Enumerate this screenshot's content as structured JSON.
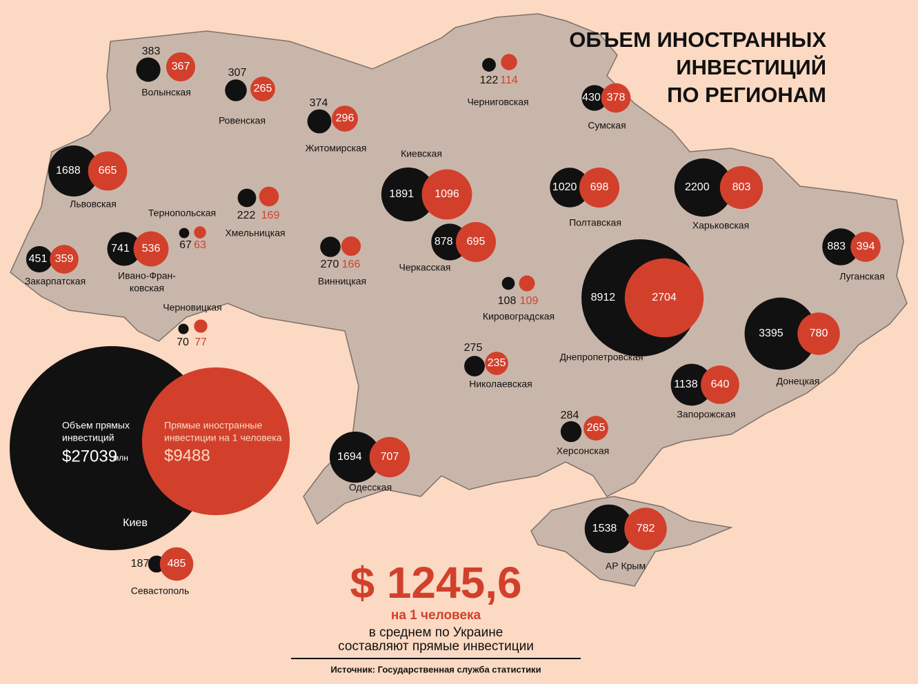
{
  "title": [
    "ОБЪЕМ ИНОСТРАННЫХ",
    "ИНВЕСТИЦИЙ",
    "ПО РЕГИОНАМ"
  ],
  "regions": [
    {
      "name": "Волынская",
      "total": 383,
      "per_capita": 367
    },
    {
      "name": "Ровенская",
      "total": 307,
      "per_capita": 265
    },
    {
      "name": "Житомирская",
      "total": 374,
      "per_capita": 296
    },
    {
      "name": "Черниговская",
      "total": 122,
      "per_capita": 114
    },
    {
      "name": "Сумская",
      "total": 430,
      "per_capita": 378
    },
    {
      "name": "Львовская",
      "total": 1688,
      "per_capita": 665
    },
    {
      "name": "Киевская",
      "total": 1891,
      "per_capita": 1096
    },
    {
      "name": "Полтавская",
      "total": 1020,
      "per_capita": 698
    },
    {
      "name": "Харьковская",
      "total": 2200,
      "per_capita": 803
    },
    {
      "name": "Тернопольская",
      "total": 67,
      "per_capita": 63
    },
    {
      "name": "Хмельницкая",
      "total": 222,
      "per_capita": 169
    },
    {
      "name": "Закарпатская",
      "total": 451,
      "per_capita": 359
    },
    {
      "name": [
        "Ивано-Фран-",
        "ковская"
      ],
      "total": 741,
      "per_capita": 536
    },
    {
      "name": "Винницкая",
      "total": 270,
      "per_capita": 166
    },
    {
      "name": "Черкасская",
      "total": 878,
      "per_capita": 695
    },
    {
      "name": "Луганская",
      "total": 883,
      "per_capita": 394
    },
    {
      "name": "Черновицкая",
      "total": 70,
      "per_capita": 77
    },
    {
      "name": "Кировоградская",
      "total": 108,
      "per_capita": 109
    },
    {
      "name": "Днепропетровская",
      "total": 8912,
      "per_capita": 2704
    },
    {
      "name": "Донецкая",
      "total": 3395,
      "per_capita": 780
    },
    {
      "name": "Николаевская",
      "total": 275,
      "per_capita": 235
    },
    {
      "name": "Запорожская",
      "total": 1138,
      "per_capita": 640
    },
    {
      "name": "Херсонская",
      "total": 284,
      "per_capita": 265
    },
    {
      "name": "Одесская",
      "total": 1694,
      "per_capita": 707
    },
    {
      "name": "АР Крым",
      "total": 1538,
      "per_capita": 782
    },
    {
      "name": "Севастополь",
      "total": 187,
      "per_capita": 485
    }
  ],
  "kiev": {
    "name": "Киев",
    "total": 27039,
    "total_label": "$27039",
    "unit": "млн",
    "total_caption": [
      "Объем прямых",
      "инвестиций"
    ],
    "per_capita": 9488,
    "per_capita_label": "$9488",
    "per_capita_caption": [
      "Прямые иностранные",
      "инвестиции на 1 человека"
    ]
  },
  "average": {
    "value_label": "$ 1245,6",
    "per": "на 1 человека",
    "text": [
      "в среднем по Украине",
      "составляют прямые инвестиции"
    ]
  },
  "source": "Источник: Государственная служба статистики"
}
